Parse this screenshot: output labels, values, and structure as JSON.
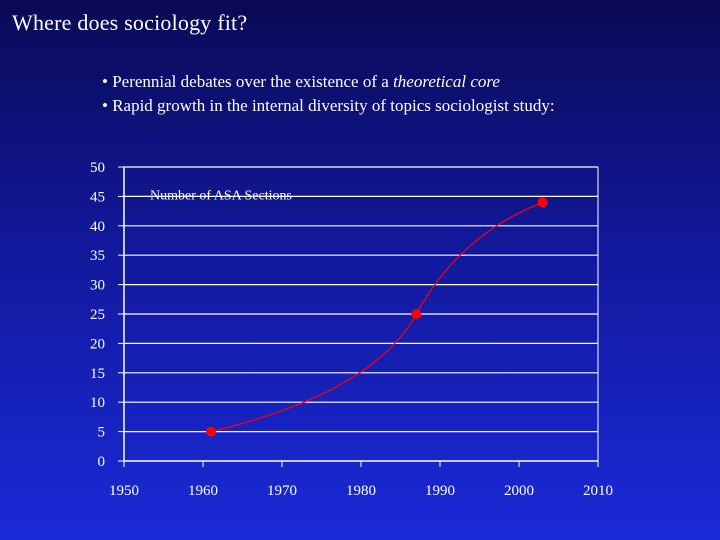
{
  "slide": {
    "title": "Where does sociology fit?",
    "bullets": [
      {
        "text": "• Perennial debates over the existence of a ",
        "emphasis": "theoretical core"
      },
      {
        "text": "• Rapid growth in the internal diversity of topics sociologist study:",
        "emphasis": ""
      }
    ]
  },
  "colors": {
    "background_top": "#0a0a55",
    "background_bottom": "#1a2ad8",
    "text": "#ffffff",
    "series": "#ff0000"
  },
  "chart_data": {
    "type": "scatter",
    "title": "",
    "xlabel": "",
    "ylabel": "",
    "xlim": [
      1950,
      2010
    ],
    "ylim": [
      0,
      50
    ],
    "xticks": [
      1950,
      1960,
      1970,
      1980,
      1990,
      2000,
      2010
    ],
    "yticks": [
      0,
      5,
      10,
      15,
      20,
      25,
      30,
      35,
      40,
      45,
      50
    ],
    "grid": true,
    "annotation": "Number of ASA Sections",
    "series": [
      {
        "trendline": "smooth",
        "points": [
          {
            "x": 1961,
            "y": 5
          },
          {
            "x": 1987,
            "y": 25
          },
          {
            "x": 2003,
            "y": 44
          }
        ]
      }
    ]
  }
}
